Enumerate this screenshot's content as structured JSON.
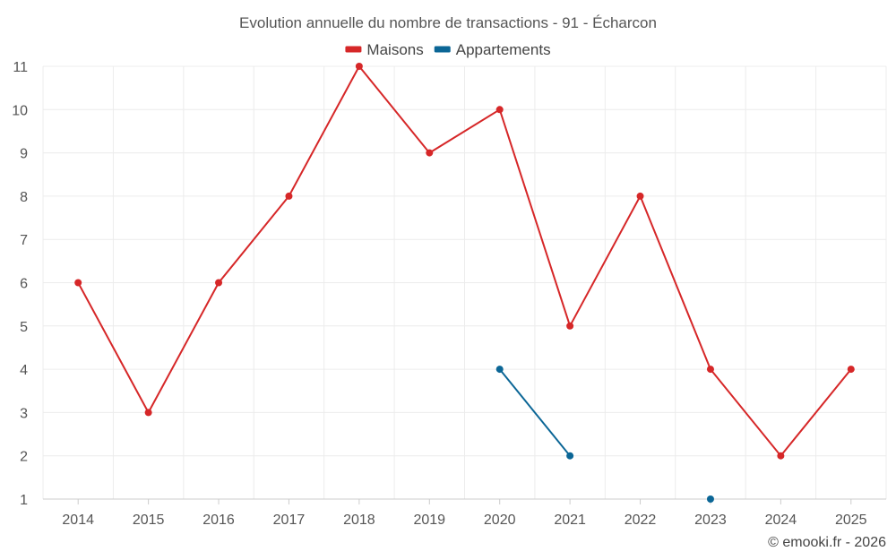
{
  "chart_data": {
    "type": "line",
    "title": "Evolution annuelle du nombre de transactions - 91 - Écharcon",
    "categories": [
      "2014",
      "2015",
      "2016",
      "2017",
      "2018",
      "2019",
      "2020",
      "2021",
      "2022",
      "2023",
      "2024",
      "2025"
    ],
    "series": [
      {
        "name": "Maisons",
        "color": "#d62728",
        "values": [
          6,
          3,
          6,
          8,
          11,
          9,
          10,
          5,
          8,
          4,
          2,
          4
        ]
      },
      {
        "name": "Appartements",
        "color": "#0b6696",
        "values": [
          null,
          null,
          null,
          null,
          null,
          null,
          4,
          2,
          null,
          1,
          null,
          null
        ]
      }
    ],
    "ylim": [
      1,
      11
    ],
    "yticks": [
      1,
      2,
      3,
      4,
      5,
      6,
      7,
      8,
      9,
      10,
      11
    ],
    "xlabel": "",
    "ylabel": "",
    "grid": true,
    "legend": "top-center"
  },
  "footer": {
    "copyright": "© emooki.fr - 2026"
  }
}
